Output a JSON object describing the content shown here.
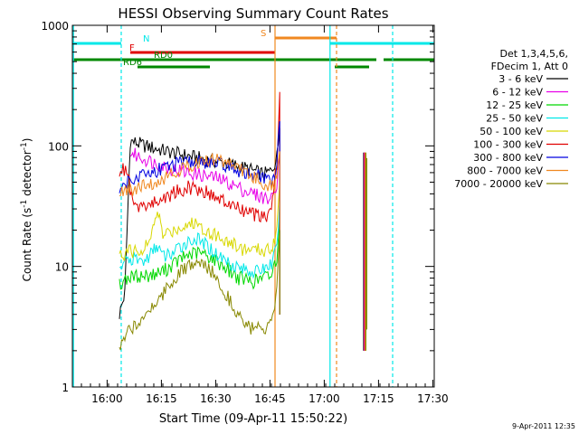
{
  "chart_data": {
    "type": "line",
    "title": "HESSI Observing Summary Count Rates",
    "xlabel": "Start Time (09-Apr-11 15:50:22)",
    "ylabel_main": "Count Rate (s",
    "ylabel_sup1": "-1",
    "ylabel_mid": " detector",
    "ylabel_sup2": "-1",
    "ylabel_end": ")",
    "yscale": "log",
    "ylim": [
      1,
      1000
    ],
    "xlim_minutes": [
      0,
      100
    ],
    "xticks": [
      {
        "label": "16:00",
        "t": 9.6
      },
      {
        "label": "16:15",
        "t": 24.6
      },
      {
        "label": "16:30",
        "t": 39.6
      },
      {
        "label": "16:45",
        "t": 54.6
      },
      {
        "label": "17:00",
        "t": 69.6
      },
      {
        "label": "17:15",
        "t": 84.6
      },
      {
        "label": "17:30",
        "t": 99.6
      }
    ],
    "yticks": [
      {
        "label": "1",
        "v": 1
      },
      {
        "label": "10",
        "v": 10
      },
      {
        "label": "100",
        "v": 100
      },
      {
        "label": "1000",
        "v": 1000
      }
    ],
    "legend": {
      "header1": "Det 1,3,4,5,6,",
      "header2": "FDecim 1, Att 0"
    },
    "series": [
      {
        "name": "3 - 6 keV",
        "color": "#000000",
        "points": [
          [
            13,
            4
          ],
          [
            14.5,
            6
          ],
          [
            16,
            110
          ],
          [
            18,
            105
          ],
          [
            20,
            100
          ],
          [
            23,
            95
          ],
          [
            26,
            90
          ],
          [
            30,
            85
          ],
          [
            34,
            80
          ],
          [
            38,
            76
          ],
          [
            42,
            72
          ],
          [
            46,
            68
          ],
          [
            50,
            62
          ],
          [
            53,
            58
          ],
          [
            55,
            62
          ],
          [
            56.5,
            80
          ],
          [
            57.3,
            140
          ]
        ]
      },
      {
        "name": "6 - 12 keV",
        "color": "#e800e8",
        "points": [
          [
            16,
            88
          ],
          [
            18,
            82
          ],
          [
            20,
            78
          ],
          [
            24,
            70
          ],
          [
            28,
            64
          ],
          [
            32,
            60
          ],
          [
            36,
            57
          ],
          [
            40,
            54
          ],
          [
            44,
            48
          ],
          [
            48,
            42
          ],
          [
            52,
            38
          ],
          [
            55,
            36
          ],
          [
            56.5,
            50
          ],
          [
            57.3,
            85
          ]
        ]
      },
      {
        "name": "12 - 25 keV",
        "color": "#00d800",
        "points": [
          [
            13,
            7
          ],
          [
            15,
            8
          ],
          [
            17,
            8.2
          ],
          [
            20,
            8.4
          ],
          [
            23,
            8.6
          ],
          [
            26,
            9.5
          ],
          [
            29,
            11
          ],
          [
            32,
            12.5
          ],
          [
            35,
            13
          ],
          [
            38,
            12
          ],
          [
            42,
            10
          ],
          [
            46,
            8
          ],
          [
            50,
            7.5
          ],
          [
            55,
            8.5
          ],
          [
            56.5,
            12
          ],
          [
            57.3,
            30
          ]
        ]
      },
      {
        "name": "25 - 50 keV",
        "color": "#00e8e8",
        "points": [
          [
            13,
            10
          ],
          [
            15,
            11
          ],
          [
            17,
            11.5
          ],
          [
            20,
            11
          ],
          [
            22,
            13
          ],
          [
            23.5,
            15
          ],
          [
            25,
            12
          ],
          [
            28,
            13
          ],
          [
            31,
            15.5
          ],
          [
            34,
            17
          ],
          [
            37,
            15
          ],
          [
            40,
            12.5
          ],
          [
            43,
            11
          ],
          [
            47,
            9.5
          ],
          [
            51,
            9
          ],
          [
            55,
            10.5
          ],
          [
            56.5,
            14
          ],
          [
            57.3,
            35
          ]
        ]
      },
      {
        "name": "50 - 100 keV",
        "color": "#d8d800",
        "points": [
          [
            13,
            12
          ],
          [
            15,
            13
          ],
          [
            17,
            13.5
          ],
          [
            20,
            14
          ],
          [
            22,
            18
          ],
          [
            23.5,
            30
          ],
          [
            25,
            18
          ],
          [
            28,
            20
          ],
          [
            31,
            22
          ],
          [
            34,
            23
          ],
          [
            37,
            20
          ],
          [
            40,
            18
          ],
          [
            43,
            16
          ],
          [
            47,
            14
          ],
          [
            51,
            13.5
          ],
          [
            55,
            14
          ],
          [
            56.5,
            20
          ],
          [
            57.3,
            50
          ]
        ]
      },
      {
        "name": "100 - 300 keV",
        "color": "#e00000",
        "points": [
          [
            13,
            62
          ],
          [
            15,
            65
          ],
          [
            17,
            30
          ],
          [
            20,
            32
          ],
          [
            23,
            34
          ],
          [
            26,
            38
          ],
          [
            29,
            42
          ],
          [
            32,
            45
          ],
          [
            35,
            44
          ],
          [
            38,
            40
          ],
          [
            42,
            34
          ],
          [
            46,
            30
          ],
          [
            50,
            27
          ],
          [
            53,
            25
          ],
          [
            55,
            30
          ],
          [
            56.5,
            70
          ],
          [
            57.3,
            280
          ]
        ]
      },
      {
        "name": "300 - 800 keV",
        "color": "#0000e0",
        "points": [
          [
            13,
            45
          ],
          [
            15,
            50
          ],
          [
            17,
            55
          ],
          [
            20,
            58
          ],
          [
            24,
            64
          ],
          [
            28,
            70
          ],
          [
            32,
            72
          ],
          [
            36,
            74
          ],
          [
            40,
            71
          ],
          [
            44,
            66
          ],
          [
            48,
            60
          ],
          [
            52,
            55
          ],
          [
            55,
            50
          ],
          [
            56.5,
            70
          ],
          [
            57.3,
            160
          ]
        ]
      },
      {
        "name": "800 - 7000 keV",
        "color": "#f08820",
        "points": [
          [
            13,
            40
          ],
          [
            15,
            42
          ],
          [
            17,
            43
          ],
          [
            20,
            46
          ],
          [
            24,
            52
          ],
          [
            28,
            60
          ],
          [
            32,
            68
          ],
          [
            36,
            75
          ],
          [
            40,
            78
          ],
          [
            44,
            72
          ],
          [
            48,
            60
          ],
          [
            52,
            50
          ],
          [
            55,
            46
          ],
          [
            56.5,
            55
          ],
          [
            57.3,
            90
          ]
        ]
      },
      {
        "name": "7000 - 20000 keV",
        "color": "#888800",
        "points": [
          [
            13,
            2
          ],
          [
            14.5,
            2.5
          ],
          [
            16,
            3
          ],
          [
            18,
            3.5
          ],
          [
            20,
            4
          ],
          [
            23,
            5
          ],
          [
            26,
            6.5
          ],
          [
            29,
            8.5
          ],
          [
            32,
            10
          ],
          [
            35,
            10.5
          ],
          [
            38,
            9.5
          ],
          [
            41,
            7
          ],
          [
            44,
            5
          ],
          [
            47,
            3.5
          ],
          [
            50,
            3
          ],
          [
            53,
            3
          ],
          [
            55,
            3.2
          ],
          [
            56.5,
            6
          ],
          [
            57.3,
            20
          ]
        ]
      }
    ],
    "late_spike": {
      "series": [
        "3 - 6 keV",
        "6 - 12 keV",
        "100 - 300 keV",
        "800 - 7000 keV",
        "7000 - 20000 keV"
      ],
      "t": [
        80.5,
        81.5
      ],
      "peak": 88,
      "floor": 2
    },
    "flags": [
      {
        "label": "N",
        "color": "#00e8e8",
        "segments": [
          [
            0,
            13.5
          ],
          [
            71.2,
            100
          ]
        ],
        "level": 0
      },
      {
        "label": "S",
        "color": "#f08820",
        "segments": [
          [
            56,
            73
          ]
        ],
        "level": 1
      },
      {
        "label": "F",
        "color": "#e00000",
        "segments": [
          [
            16,
            56
          ]
        ],
        "level": 2
      },
      {
        "label": "RD0",
        "color": "#008800",
        "segments": [
          [
            0,
            56
          ],
          [
            56,
            73
          ],
          [
            72.5,
            84
          ],
          [
            86,
            100
          ]
        ],
        "level": 3
      },
      {
        "label": "RD6",
        "color": "#008800",
        "segments": [
          [
            18,
            38
          ],
          [
            72.5,
            82
          ]
        ],
        "level": 4
      }
    ],
    "night_lines": [
      {
        "t": 13.5,
        "style": "dash",
        "color": "#00e8e8"
      },
      {
        "t": 71.2,
        "style": "solid",
        "color": "#00e8e8"
      },
      {
        "t": 88.5,
        "style": "dash",
        "color": "#00e8e8"
      },
      {
        "t": 0.3,
        "style": "solid",
        "color": "#00e8e8"
      },
      {
        "t": 56,
        "style": "solid",
        "color": "#f08820"
      },
      {
        "t": 73,
        "style": "dash",
        "color": "#f08820"
      }
    ]
  },
  "timestamp": "9-Apr-2011 12:35"
}
